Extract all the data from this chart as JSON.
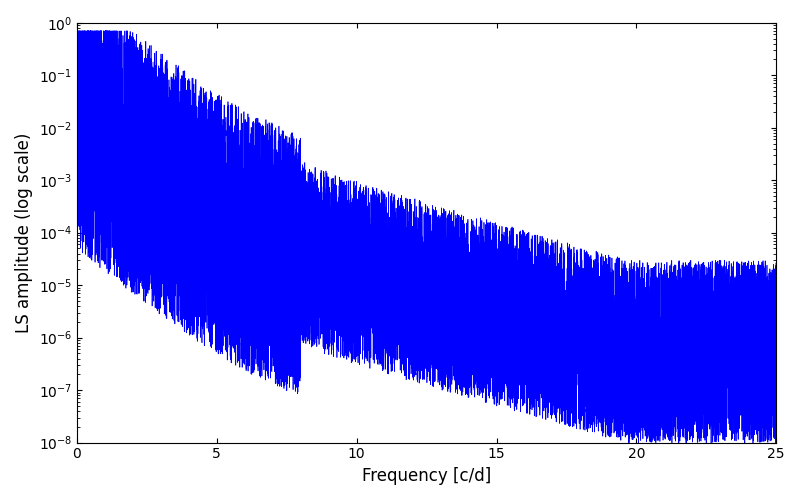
{
  "xlabel": "Frequency [c/d]",
  "ylabel": "LS amplitude (log scale)",
  "line_color": "#0000ff",
  "line_width": 0.5,
  "xlim": [
    0,
    25
  ],
  "ylim": [
    1e-08,
    1.0
  ],
  "yscale": "log",
  "figsize": [
    8.0,
    5.0
  ],
  "dpi": 100,
  "freq_max": 25.0,
  "n_points": 15000,
  "seed": 123
}
